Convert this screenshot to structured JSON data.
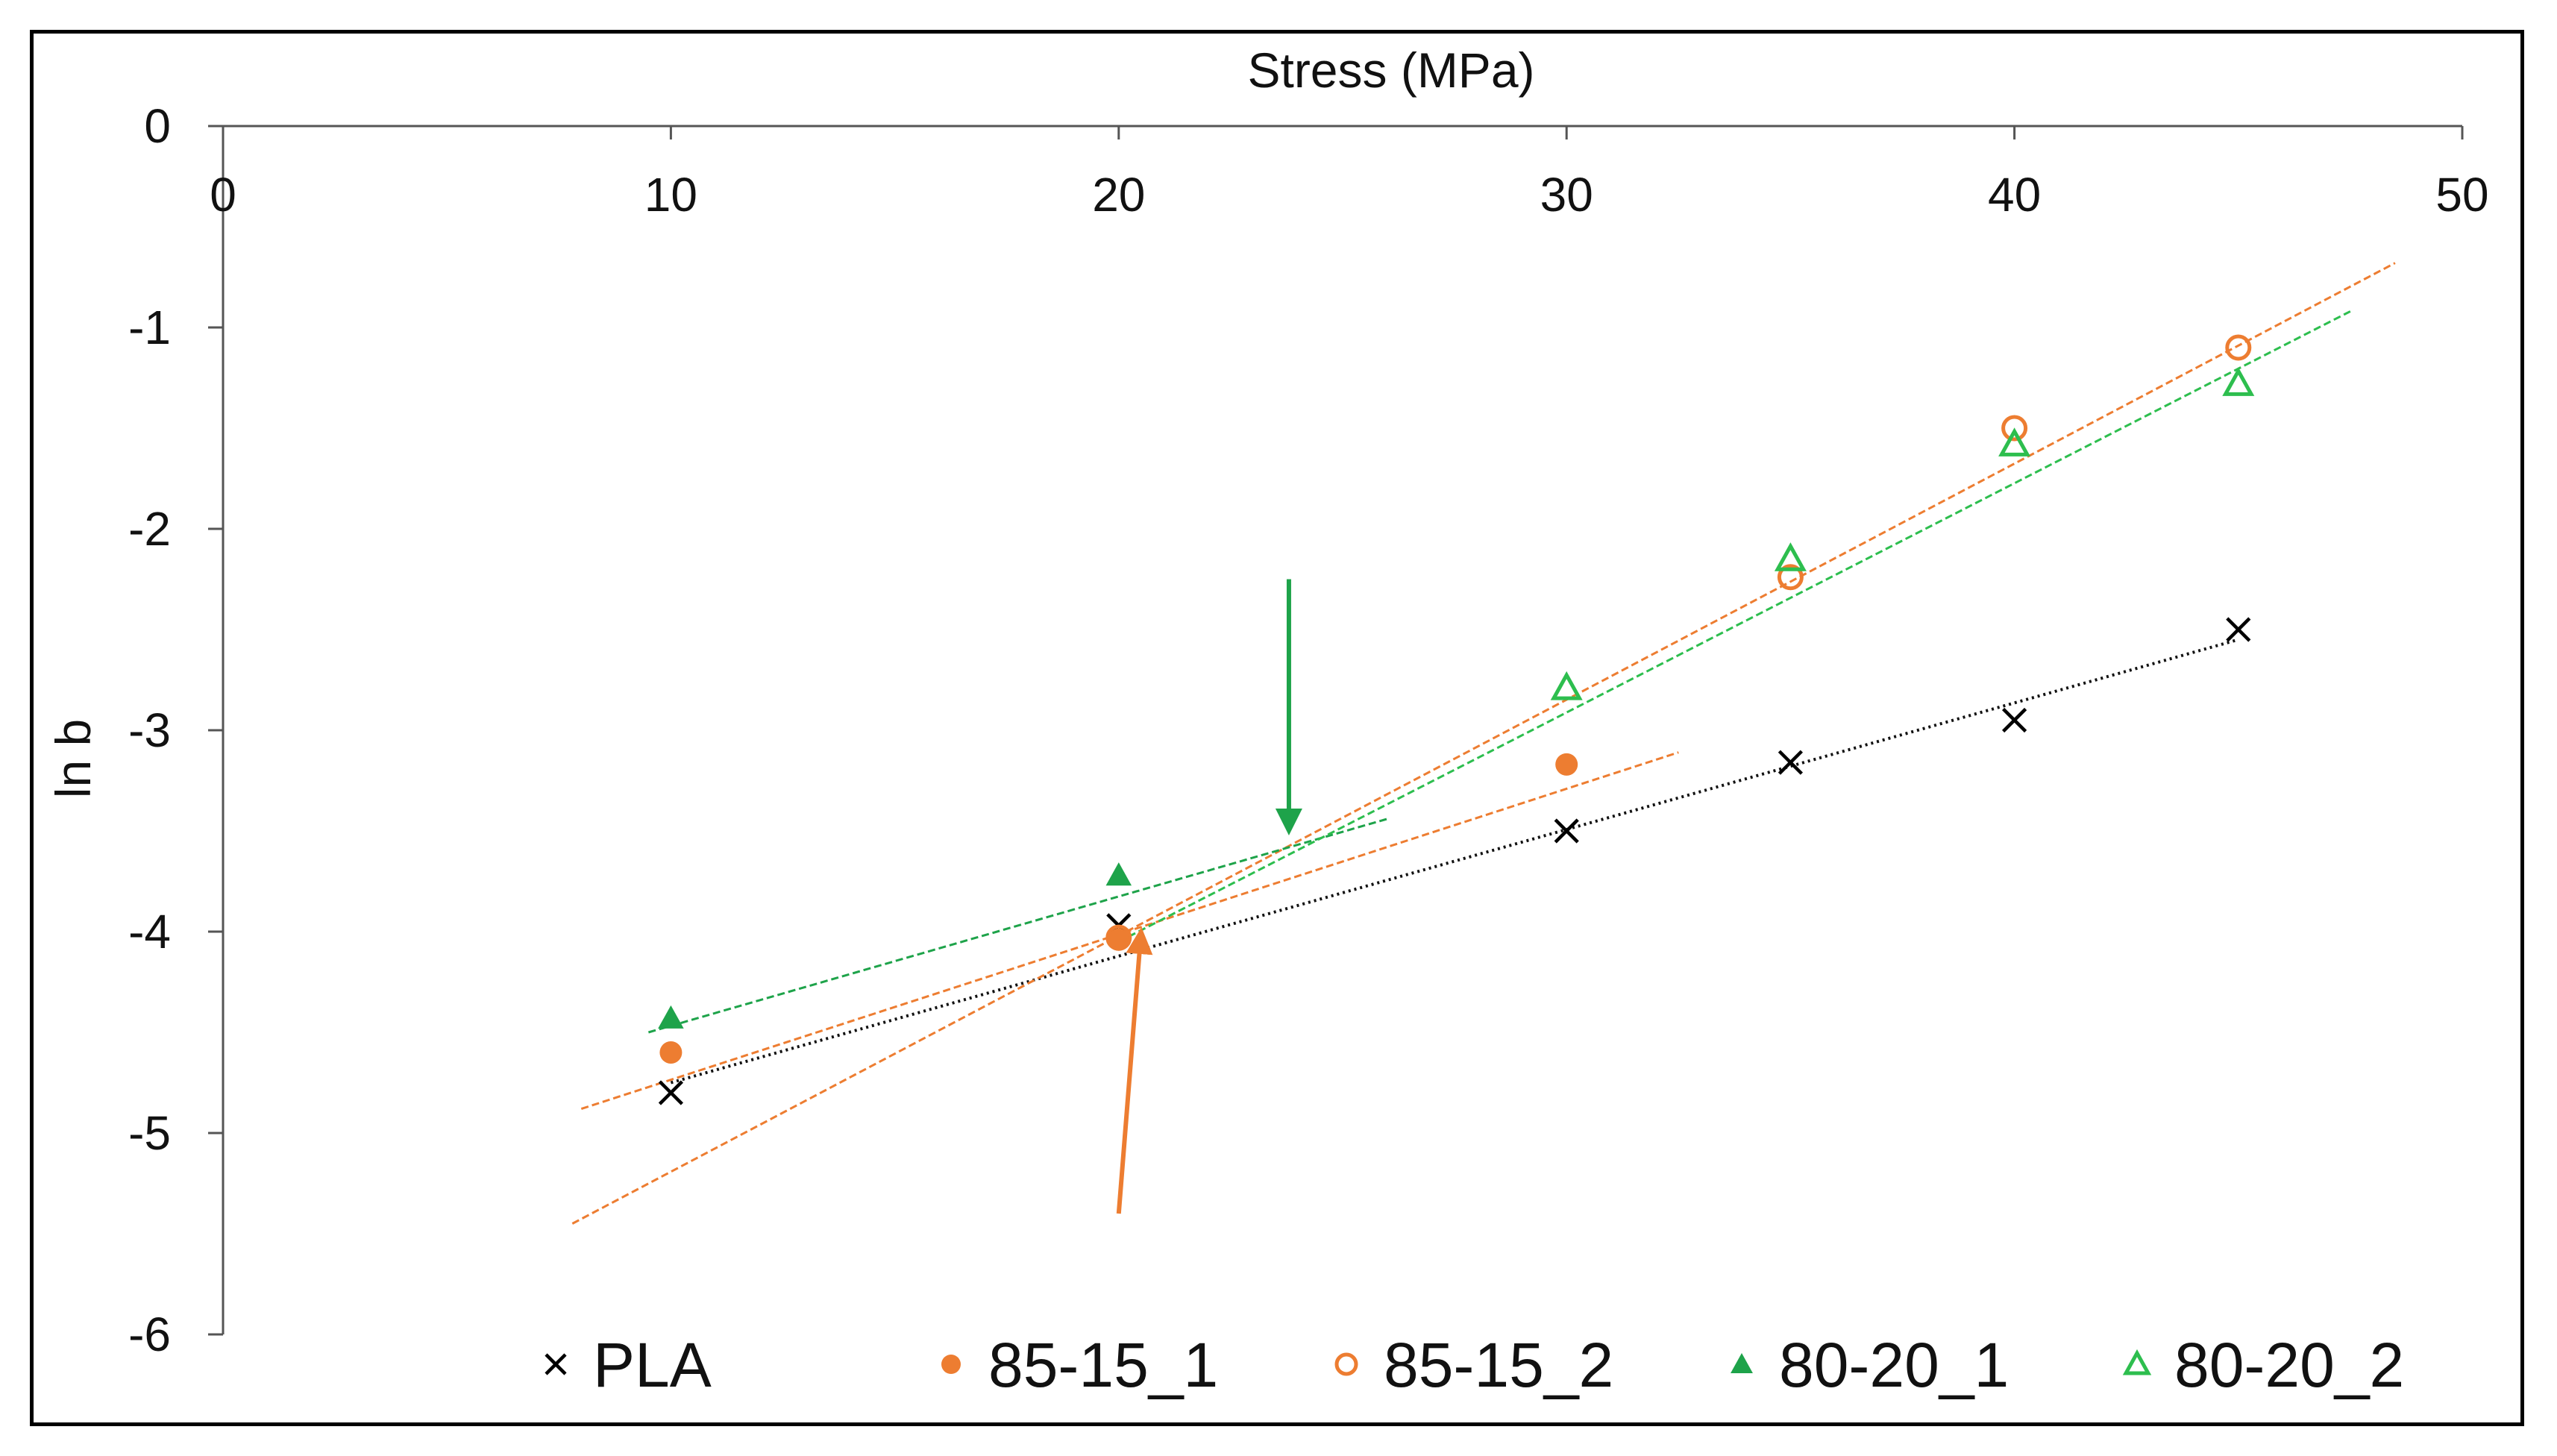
{
  "chart_data": {
    "type": "scatter",
    "title": "",
    "xlabel": "Stress (MPa)",
    "ylabel": "ln b",
    "xlim": [
      0,
      50
    ],
    "ylim": [
      -6,
      0
    ],
    "x_ticks": [
      "0",
      "10",
      "20",
      "30",
      "40",
      "50"
    ],
    "y_ticks": [
      "0",
      "-1",
      "-2",
      "-3",
      "-4",
      "-5",
      "-6"
    ],
    "legend_position": "bottom",
    "series": [
      {
        "name": "PLA",
        "marker": "x",
        "color": "#000000",
        "points": [
          [
            10,
            -4.8
          ],
          [
            20,
            -3.97
          ],
          [
            30,
            -3.5
          ],
          [
            35,
            -3.16
          ],
          [
            40,
            -2.95
          ],
          [
            45,
            -2.5
          ]
        ],
        "trendlines": [
          {
            "x": [
              10,
              45
            ],
            "y": [
              -4.75,
              -2.55
            ],
            "style": "dotted"
          }
        ]
      },
      {
        "name": "85-15_1",
        "marker": "filled-circle",
        "color": "#ED7D31",
        "points": [
          [
            10,
            -4.6
          ],
          [
            20,
            -4.04
          ],
          [
            30,
            -3.17
          ]
        ],
        "trendlines": [
          {
            "x": [
              8,
              32.5
            ],
            "y": [
              -4.88,
              -3.11
            ],
            "style": "dashed"
          }
        ]
      },
      {
        "name": "85-15_2",
        "marker": "open-circle",
        "color": "#ED7D31",
        "points": [
          [
            20,
            -4.03
          ],
          [
            35,
            -2.24
          ],
          [
            40,
            -1.5
          ],
          [
            45,
            -1.1
          ]
        ],
        "trendlines": [
          {
            "x": [
              7.8,
              48.5
            ],
            "y": [
              -5.45,
              -0.68
            ],
            "style": "dashed"
          }
        ]
      },
      {
        "name": "80-20_1",
        "marker": "filled-triangle",
        "color": "#1EA34A",
        "points": [
          [
            10,
            -4.43
          ],
          [
            20,
            -3.72
          ]
        ],
        "trendlines": [
          {
            "x": [
              9.5,
              26
            ],
            "y": [
              -4.5,
              -3.44
            ],
            "style": "dashed"
          }
        ]
      },
      {
        "name": "80-20_2",
        "marker": "open-triangle",
        "color": "#2DBE4E",
        "points": [
          [
            30,
            -2.79
          ],
          [
            35,
            -2.15
          ],
          [
            40,
            -1.58
          ],
          [
            45,
            -1.28
          ]
        ],
        "trendlines": [
          {
            "x": [
              20,
              47.5
            ],
            "y": [
              -4.05,
              -0.92
            ],
            "style": "dashed"
          }
        ]
      }
    ],
    "annotations": [
      {
        "type": "arrow",
        "color": "#1EA34A",
        "from": [
          23.8,
          -2.25
        ],
        "to": [
          23.8,
          -3.5
        ]
      },
      {
        "type": "arrow",
        "color": "#ED7D31",
        "from": [
          20,
          -5.4
        ],
        "to": [
          20.5,
          -4.0
        ]
      }
    ]
  }
}
